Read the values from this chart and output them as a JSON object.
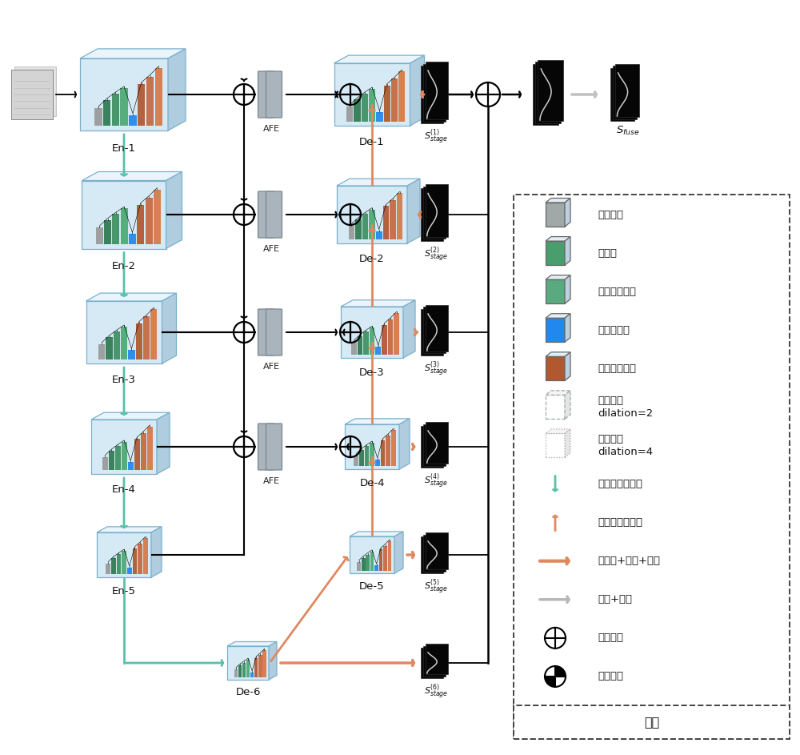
{
  "bg_color": "#ffffff",
  "teal": "#5bbfaa",
  "salmon": "#e08860",
  "black": "#111111",
  "lgray": "#b0b0b0",
  "box_face": "#d6eaf5",
  "box_top": "#eaf4fb",
  "box_right": "#b0ccdf",
  "box_edge": "#7ab0cc",
  "bar_colors": [
    "#9a9a9a",
    "#2d7a50",
    "#3d9060",
    "#4daa74",
    "#2288ee",
    "#b05830",
    "#c86840",
    "#d87848"
  ],
  "en_labels": [
    "En-1",
    "En-2",
    "En-3",
    "En-4",
    "En-5"
  ],
  "de_labels": [
    "De-1",
    "De-2",
    "De-3",
    "De-4",
    "De-5",
    "De-6"
  ],
  "afe_label": "AFE",
  "sfuse_label": "$S_{fuse}$",
  "stage_labels_tex": [
    "$S^{(1)}_{stage}$",
    "$S^{(2)}_{stage}$",
    "$S^{(3)}_{stage}$",
    "$S^{(4)}_{stage}$",
    "$S^{(5)}_{stage}$",
    "$S^{(6)}_{stage}$"
  ],
  "legend_items": [
    {
      "type": "solid_box",
      "color": "#a0a8a8",
      "label": "常规卷积"
    },
    {
      "type": "solid_box",
      "color": "#4a9e6e",
      "label": "瓶颈块"
    },
    {
      "type": "solid_box",
      "color": "#5aaa80",
      "label": "瓶颈块下采样"
    },
    {
      "type": "solid_box",
      "color": "#2288ee",
      "label": "通道注意力"
    },
    {
      "type": "solid_box",
      "color": "#b05830",
      "label": "瓶颈块上采样"
    },
    {
      "type": "dashed_box",
      "color": "#a0a8a8",
      "label": "空洞卷积\ndilation=2"
    },
    {
      "type": "dotted_box",
      "color": "#a0a8a8",
      "label": "空洞卷积\ndilation=4"
    },
    {
      "type": "teal_arrow",
      "color": "#5bbfaa",
      "label": "像素混合下采样"
    },
    {
      "type": "salmon_arrow",
      "color": "#e08860",
      "label": "像素混合上采样"
    },
    {
      "type": "thick_salmon",
      "color": "#e08860",
      "label": "上采样+卷积+激活"
    },
    {
      "type": "thick_gray",
      "color": "#b8b8b8",
      "label": "卷积+激活"
    },
    {
      "type": "circle_plus",
      "color": "#111111",
      "label": "通道串联"
    },
    {
      "type": "circle_plus4",
      "color": "#111111",
      "label": "通道相加"
    }
  ],
  "legend_title": "图注"
}
